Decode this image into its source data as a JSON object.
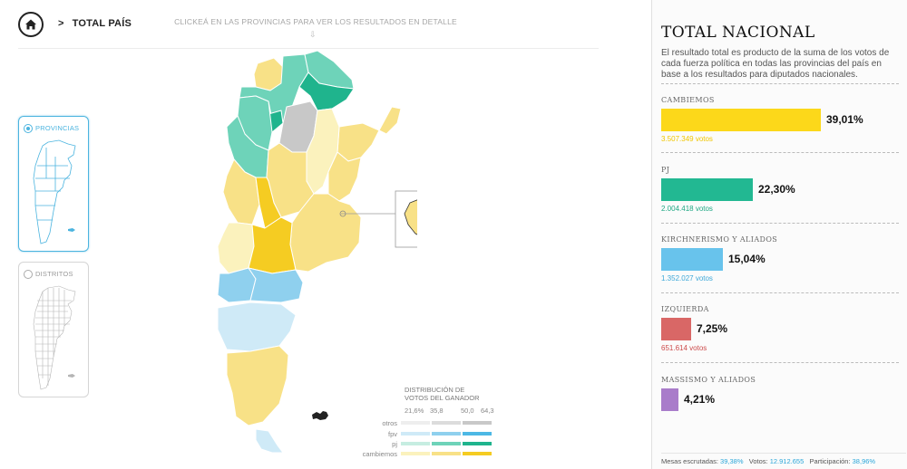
{
  "header": {
    "home_icon": "home-icon",
    "crumb_separator": ">",
    "crumb_label": "TOTAL PAÍS",
    "hint": "CLICKEÁ EN LAS PROVINCIAS PARA VER LOS RESULTADOS EN DETALLE",
    "hint_arrow": "⇩"
  },
  "modes": [
    {
      "label": "PROVINCIAS",
      "active": true
    },
    {
      "label": "DISTRITOS",
      "active": false
    }
  ],
  "legend": {
    "title": "DISTRIBUCIÓN DE VOTOS DEL GANADOR",
    "scale": [
      "21,6%",
      "35,8",
      "50,0",
      "64,3"
    ],
    "rows": [
      {
        "name": "otros",
        "colors": [
          "#eeeeee",
          "#dcdcdc",
          "#c8c8c8"
        ]
      },
      {
        "name": "fpv",
        "colors": [
          "#cfeaf7",
          "#8fd0ee",
          "#4db8e5"
        ]
      },
      {
        "name": "pj",
        "colors": [
          "#c6ede1",
          "#6ed3b9",
          "#1fb48d"
        ]
      },
      {
        "name": "cambiemos",
        "colors": [
          "#fbf2bd",
          "#f8e187",
          "#f5cc22"
        ]
      }
    ]
  },
  "panel": {
    "title": "TOTAL NACIONAL",
    "description": "El resultado total es producto de la suma de los votos de cada fuerza política en todas las provincias del país en base a los resultados para diputados nacionales.",
    "parties": [
      {
        "name": "CAMBIEMOS",
        "pct": "39,01%",
        "value": 39.01,
        "votes": "3.507.349 votos",
        "color": "#fcd81a",
        "votes_color": "#f0c600"
      },
      {
        "name": "PJ",
        "pct": "22,30%",
        "value": 22.3,
        "votes": "2.004.418 votos",
        "color": "#22b892",
        "votes_color": "#1fa884"
      },
      {
        "name": "KIRCHNERISMO Y ALIADOS",
        "pct": "15,04%",
        "value": 15.04,
        "votes": "1.352.027 votos",
        "color": "#68c3ec",
        "votes_color": "#3ea8d8"
      },
      {
        "name": "IZQUIERDA",
        "pct": "7,25%",
        "value": 7.25,
        "votes": "651.614 votos",
        "color": "#d96766",
        "votes_color": "#cc4b4b"
      },
      {
        "name": "MASSISMO Y ALIADOS",
        "pct": "4,21%",
        "value": 4.21,
        "votes": "",
        "color": "#a97cca",
        "votes_color": "#8f5fb5"
      }
    ],
    "footer": {
      "mesas_label": "Mesas escrutadas:",
      "mesas_value": "39,38%",
      "votos_label": "Votos:",
      "votos_value": "12.912.655",
      "part_label": "Participación:",
      "part_value": "38,96%"
    }
  }
}
